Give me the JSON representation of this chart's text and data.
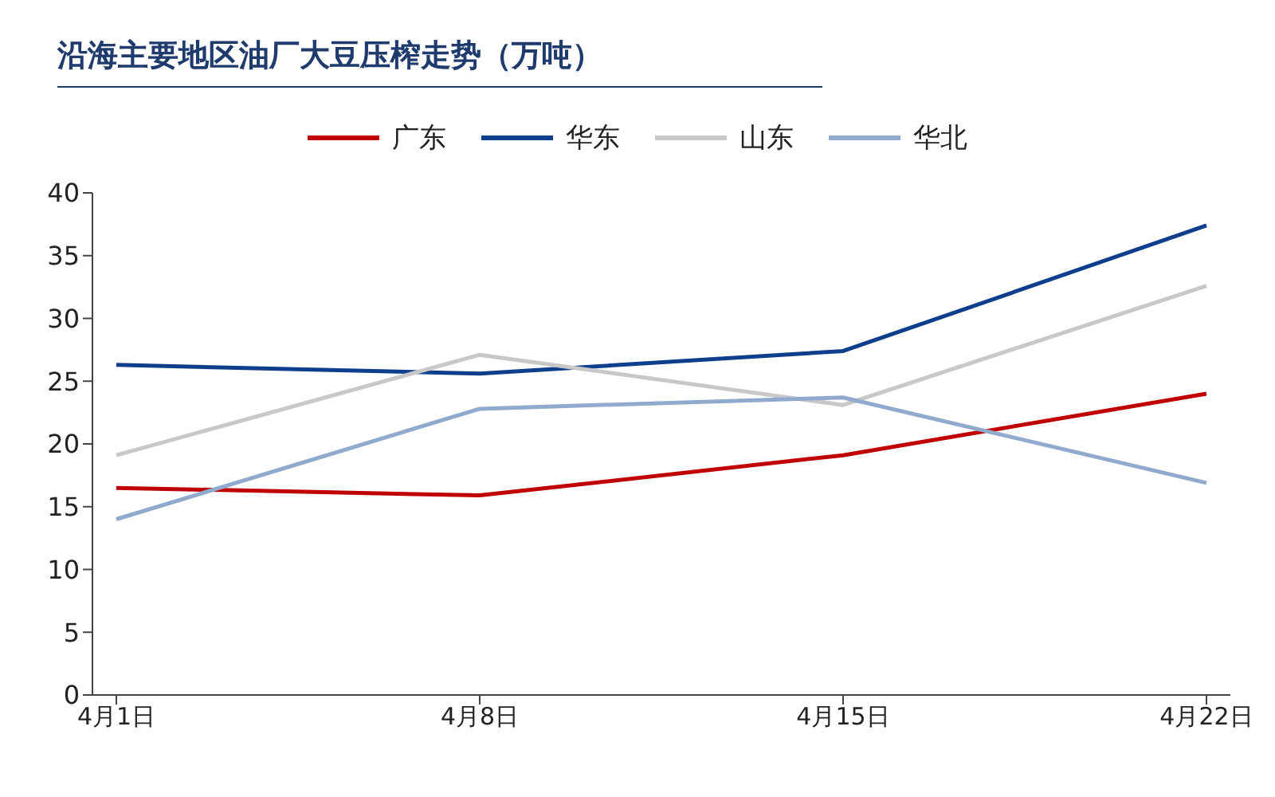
{
  "chart_data": {
    "type": "line",
    "title": "沿海主要地区油厂大豆压榨走势（万吨）",
    "categories": [
      "4月1日",
      "4月8日",
      "4月15日",
      "4月22日"
    ],
    "series": [
      {
        "name": "广东",
        "color": "#c00000",
        "values": [
          16.5,
          15.9,
          19.1,
          24.0
        ]
      },
      {
        "name": "华东",
        "color": "#0e3f8c",
        "values": [
          26.3,
          25.6,
          27.4,
          37.4
        ]
      },
      {
        "name": "山东",
        "color": "#c8c8c8",
        "values": [
          19.1,
          27.1,
          23.1,
          32.6
        ]
      },
      {
        "name": "华北",
        "color": "#8faacc",
        "values": [
          14.0,
          22.8,
          23.7,
          16.9
        ]
      }
    ],
    "ylim": [
      0,
      40
    ],
    "yticks": [
      0,
      5,
      10,
      15,
      20,
      25,
      30,
      35,
      40
    ],
    "grid": false,
    "legend": "top",
    "marker": "none",
    "line_style": "solid"
  }
}
